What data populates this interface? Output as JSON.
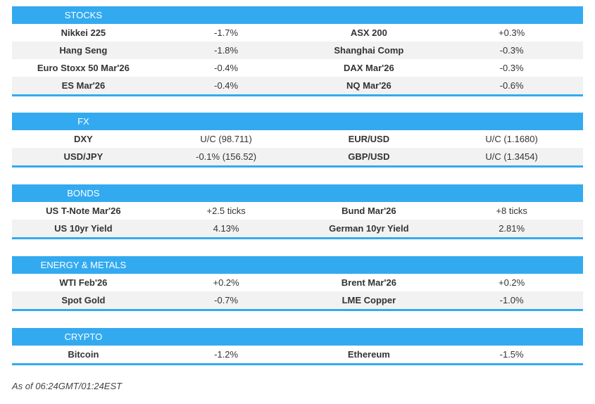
{
  "accent_color": "#33aaf0",
  "sections": [
    {
      "title": "STOCKS",
      "rows": [
        [
          "Nikkei 225",
          "-1.7%",
          "ASX 200",
          "+0.3%"
        ],
        [
          "Hang Seng",
          "-1.8%",
          "Shanghai Comp",
          "-0.3%"
        ],
        [
          "Euro Stoxx 50 Mar'26",
          "-0.4%",
          "DAX Mar'26",
          "-0.3%"
        ],
        [
          "ES Mar'26",
          "-0.4%",
          "NQ Mar'26",
          "-0.6%"
        ]
      ]
    },
    {
      "title": "FX",
      "rows": [
        [
          "DXY",
          "U/C (98.711)",
          "EUR/USD",
          "U/C (1.1680)"
        ],
        [
          "USD/JPY",
          "-0.1% (156.52)",
          "GBP/USD",
          "U/C (1.3454)"
        ]
      ]
    },
    {
      "title": "BONDS",
      "rows": [
        [
          "US T-Note Mar'26",
          "+2.5 ticks",
          "Bund Mar'26",
          "+8 ticks"
        ],
        [
          "US 10yr Yield",
          "4.13%",
          "German 10yr Yield",
          "2.81%"
        ]
      ]
    },
    {
      "title": "ENERGY & METALS",
      "rows": [
        [
          "WTI Feb'26",
          "+0.2%",
          "Brent Mar'26",
          "+0.2%"
        ],
        [
          "Spot Gold",
          "-0.7%",
          "LME Copper",
          "-1.0%"
        ]
      ]
    },
    {
      "title": "CRYPTO",
      "rows": [
        [
          "Bitcoin",
          "-1.2%",
          "Ethereum",
          "-1.5%"
        ]
      ]
    }
  ],
  "footer": {
    "as_of": "As of 06:24GMT/01:24EST"
  }
}
